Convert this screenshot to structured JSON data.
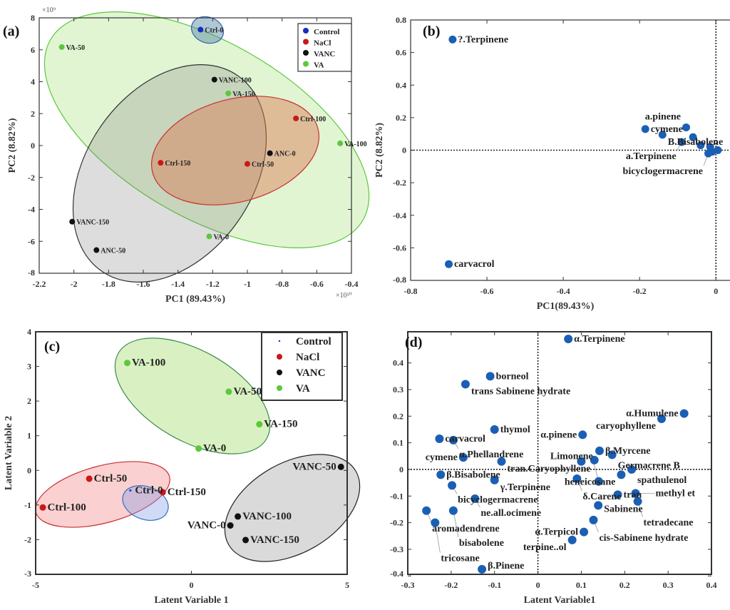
{
  "chart_data": [
    {
      "type": "scatter",
      "panel": "(a)",
      "xlabel": "PC1 (89.43%)",
      "ylabel": "PC2 (8.82%)",
      "x_exponent": "×10¹⁰",
      "y_exponent": "×10⁹",
      "xlim": [
        -2.2,
        -0.4
      ],
      "ylim": [
        -8,
        8
      ],
      "xticks": [
        "-2.2",
        "-2",
        "-1.8",
        "-1.6",
        "-1.4",
        "-1.2",
        "-1",
        "-0.8",
        "-0.6",
        "-0.4"
      ],
      "yticks": [
        "-8",
        "-6",
        "-4",
        "-2",
        "0",
        "2",
        "4",
        "6",
        "8"
      ],
      "legend": {
        "placement": "top-right",
        "entries": [
          {
            "name": "Control",
            "color": "#1030c0"
          },
          {
            "name": "NaCl",
            "color": "#c81818"
          },
          {
            "name": "VANC",
            "color": "#111111"
          },
          {
            "name": "VA",
            "color": "#5cc83c"
          }
        ]
      },
      "points": [
        {
          "label": "Ctrl-0",
          "group": "Control",
          "x": -1.27,
          "y": 7.26
        },
        {
          "label": "VA-50",
          "group": "VA",
          "x": -2.07,
          "y": 6.17
        },
        {
          "label": "VANC-100",
          "group": "VANC",
          "x": -1.19,
          "y": 4.13
        },
        {
          "label": "VA-150",
          "group": "VA",
          "x": -1.11,
          "y": 3.27
        },
        {
          "label": "Ctrl-100",
          "group": "NaCl",
          "x": -0.72,
          "y": 1.7
        },
        {
          "label": "VA-100",
          "group": "VA",
          "x": -0.465,
          "y": 0.14
        },
        {
          "label": "ANC-0",
          "group": "VANC",
          "x": -0.87,
          "y": -0.48
        },
        {
          "label": "Ctrl-150",
          "group": "NaCl",
          "x": -1.5,
          "y": -1.08
        },
        {
          "label": "Ctrl-50",
          "group": "NaCl",
          "x": -1.0,
          "y": -1.15
        },
        {
          "label": "VANC-150",
          "group": "VANC",
          "x": -2.01,
          "y": -4.77
        },
        {
          "label": "ANC-50",
          "group": "VANC",
          "x": -1.87,
          "y": -6.55
        },
        {
          "label": "VA-0",
          "group": "VA",
          "x": -1.22,
          "y": -5.69
        }
      ]
    },
    {
      "type": "scatter",
      "panel": "(b)",
      "xlabel": "PC1(89.43%)",
      "ylabel": "PC2 (8.82%)",
      "xlim": [
        -0.8,
        0.05
      ],
      "ylim": [
        -0.8,
        0.8
      ],
      "xticks": [
        "-0.8",
        "-0.6",
        "-0.4",
        "-0.2",
        "0"
      ],
      "yticks": [
        "-0.8",
        "-0.6",
        "-0.4",
        "-0.2",
        "0",
        "0.2",
        "0.4",
        "0.6",
        "0.8"
      ],
      "points": [
        {
          "label": "?.Terpinene",
          "x": -0.69,
          "y": 0.68
        },
        {
          "label": "carvacrol",
          "x": -0.7,
          "y": -0.7
        },
        {
          "label": "cymene",
          "x": -0.185,
          "y": 0.13
        },
        {
          "label": "B.Bisabolene",
          "x": -0.14,
          "y": 0.095
        },
        {
          "label": "a.pinene",
          "x": -0.078,
          "y": 0.14
        },
        {
          "label": "a.Terpinene",
          "x": -0.09,
          "y": 0.05
        },
        {
          "label": "bicyclogermacrene",
          "x": -0.02,
          "y": -0.02
        },
        {
          "label": "",
          "x": -0.06,
          "y": 0.08
        },
        {
          "label": "",
          "x": -0.04,
          "y": 0.03
        },
        {
          "label": "",
          "x": -0.015,
          "y": 0.02
        },
        {
          "label": "",
          "x": -0.01,
          "y": -0.01
        },
        {
          "label": "",
          "x": 0.005,
          "y": 0.0
        }
      ]
    },
    {
      "type": "scatter",
      "panel": "(c)",
      "xlabel": "Latent Variable 1",
      "ylabel": "Latent Variable 2",
      "xlim": [
        -5,
        5
      ],
      "ylim": [
        -3,
        4
      ],
      "xticks": [
        "-5",
        "0",
        "5"
      ],
      "yticks": [
        "-3",
        "-2",
        "-1",
        "0",
        "1",
        "2",
        "3",
        "4"
      ],
      "legend": {
        "placement": "top-right",
        "entries": [
          {
            "name": "Control",
            "color": "#1030c0"
          },
          {
            "name": "NaCl",
            "color": "#c81818"
          },
          {
            "name": "VANC",
            "color": "#111111"
          },
          {
            "name": "VA",
            "color": "#5cc83c"
          }
        ]
      },
      "points": [
        {
          "label": "VA-100",
          "group": "VA",
          "x": -2.06,
          "y": 3.1
        },
        {
          "label": "VA-50",
          "group": "VA",
          "x": 1.2,
          "y": 2.27
        },
        {
          "label": "VA-150",
          "group": "VA",
          "x": 2.18,
          "y": 1.33
        },
        {
          "label": "VA-0",
          "group": "VA",
          "x": 0.23,
          "y": 0.63
        },
        {
          "label": "Ctrl-50",
          "group": "NaCl",
          "x": -3.28,
          "y": -0.24
        },
        {
          "label": "Ctrl-100",
          "group": "NaCl",
          "x": -4.77,
          "y": -1.07
        },
        {
          "label": "Ctrl-150",
          "group": "NaCl",
          "x": -0.92,
          "y": -0.63
        },
        {
          "label": "Ctrl-0",
          "group": "Control",
          "x": -1.96,
          "y": -0.58
        },
        {
          "label": "VANC-50",
          "group": "VANC",
          "x": 4.8,
          "y": 0.1
        },
        {
          "label": "VANC-100",
          "group": "VANC",
          "x": 1.49,
          "y": -1.33
        },
        {
          "label": "VANC-0",
          "group": "VANC",
          "x": 1.25,
          "y": -1.59
        },
        {
          "label": "VANC-150",
          "group": "VANC",
          "x": 1.74,
          "y": -2.01
        }
      ]
    },
    {
      "type": "scatter",
      "panel": "(d)",
      "xlabel": "Latent Variable1",
      "ylabel": "",
      "xlim": [
        -0.3,
        0.4
      ],
      "ylim": [
        -0.394,
        0.517
      ],
      "xticks": [
        "-0.3",
        "-0.2",
        "-0.1",
        "0",
        "0.1",
        "0.2",
        "0.3",
        "0.4"
      ],
      "yticks": [
        "-0.4",
        "-0.3",
        "-0.2",
        "-0.1",
        "0",
        "0.1",
        "0.2",
        "0.3",
        "0.4"
      ],
      "points": [
        {
          "label": "α.Terpinene",
          "x": 0.07,
          "y": 0.49
        },
        {
          "label": "borneol",
          "x": -0.11,
          "y": 0.35
        },
        {
          "label": "trans Sabinene hydrate",
          "x": -0.167,
          "y": 0.32
        },
        {
          "label": "α.Humulene",
          "x": 0.337,
          "y": 0.21
        },
        {
          "label": "caryophyllene",
          "x": 0.285,
          "y": 0.19
        },
        {
          "label": "thymol",
          "x": -0.1,
          "y": 0.15
        },
        {
          "label": "α.pinene",
          "x": 0.103,
          "y": 0.13
        },
        {
          "label": "carvacrol",
          "x": -0.227,
          "y": 0.115
        },
        {
          "label": "α.Phellandrene",
          "x": -0.195,
          "y": 0.11
        },
        {
          "label": "β.Myrcene",
          "x": 0.142,
          "y": 0.07
        },
        {
          "label": "Germacrene B",
          "x": 0.171,
          "y": 0.055
        },
        {
          "label": "cymene",
          "x": -0.172,
          "y": 0.045
        },
        {
          "label": "tran.Caryophyllene",
          "x": -0.084,
          "y": 0.03
        },
        {
          "label": "",
          "x": 0.1,
          "y": 0.03
        },
        {
          "label": "",
          "x": 0.13,
          "y": 0.035
        },
        {
          "label": "spathulenol",
          "x": 0.216,
          "y": 0.0
        },
        {
          "label": "heneicosane",
          "x": 0.192,
          "y": -0.02
        },
        {
          "label": "δ.Carene",
          "x": 0.09,
          "y": -0.035
        },
        {
          "label": "Limonene",
          "x": 0.14,
          "y": -0.045
        },
        {
          "label": "β.Bisabolene",
          "x": -0.224,
          "y": -0.02
        },
        {
          "label": "γ.Terpinene",
          "x": -0.1,
          "y": -0.04
        },
        {
          "label": "bicyclogermacrene",
          "x": -0.198,
          "y": -0.06
        },
        {
          "label": "ne.all.ocimene",
          "x": -0.145,
          "y": -0.11
        },
        {
          "label": "aromadendrene",
          "x": -0.257,
          "y": -0.155
        },
        {
          "label": "bisabolene",
          "x": -0.195,
          "y": -0.155
        },
        {
          "label": "tricosane",
          "x": -0.237,
          "y": -0.2
        },
        {
          "label": "Sabinene",
          "x": 0.139,
          "y": -0.135
        },
        {
          "label": "tran",
          "x": 0.184,
          "y": -0.095
        },
        {
          "label": "methyl et",
          "x": 0.225,
          "y": -0.09
        },
        {
          "label": "tetradecane",
          "x": 0.23,
          "y": -0.12
        },
        {
          "label": "cis-Sabinene hydrate",
          "x": 0.128,
          "y": -0.19
        },
        {
          "label": "α.Terpicol",
          "x": 0.106,
          "y": -0.235
        },
        {
          "label": "terpine..ol",
          "x": 0.079,
          "y": -0.265
        },
        {
          "label": "β.Pinene",
          "x": -0.129,
          "y": -0.375
        }
      ]
    }
  ]
}
